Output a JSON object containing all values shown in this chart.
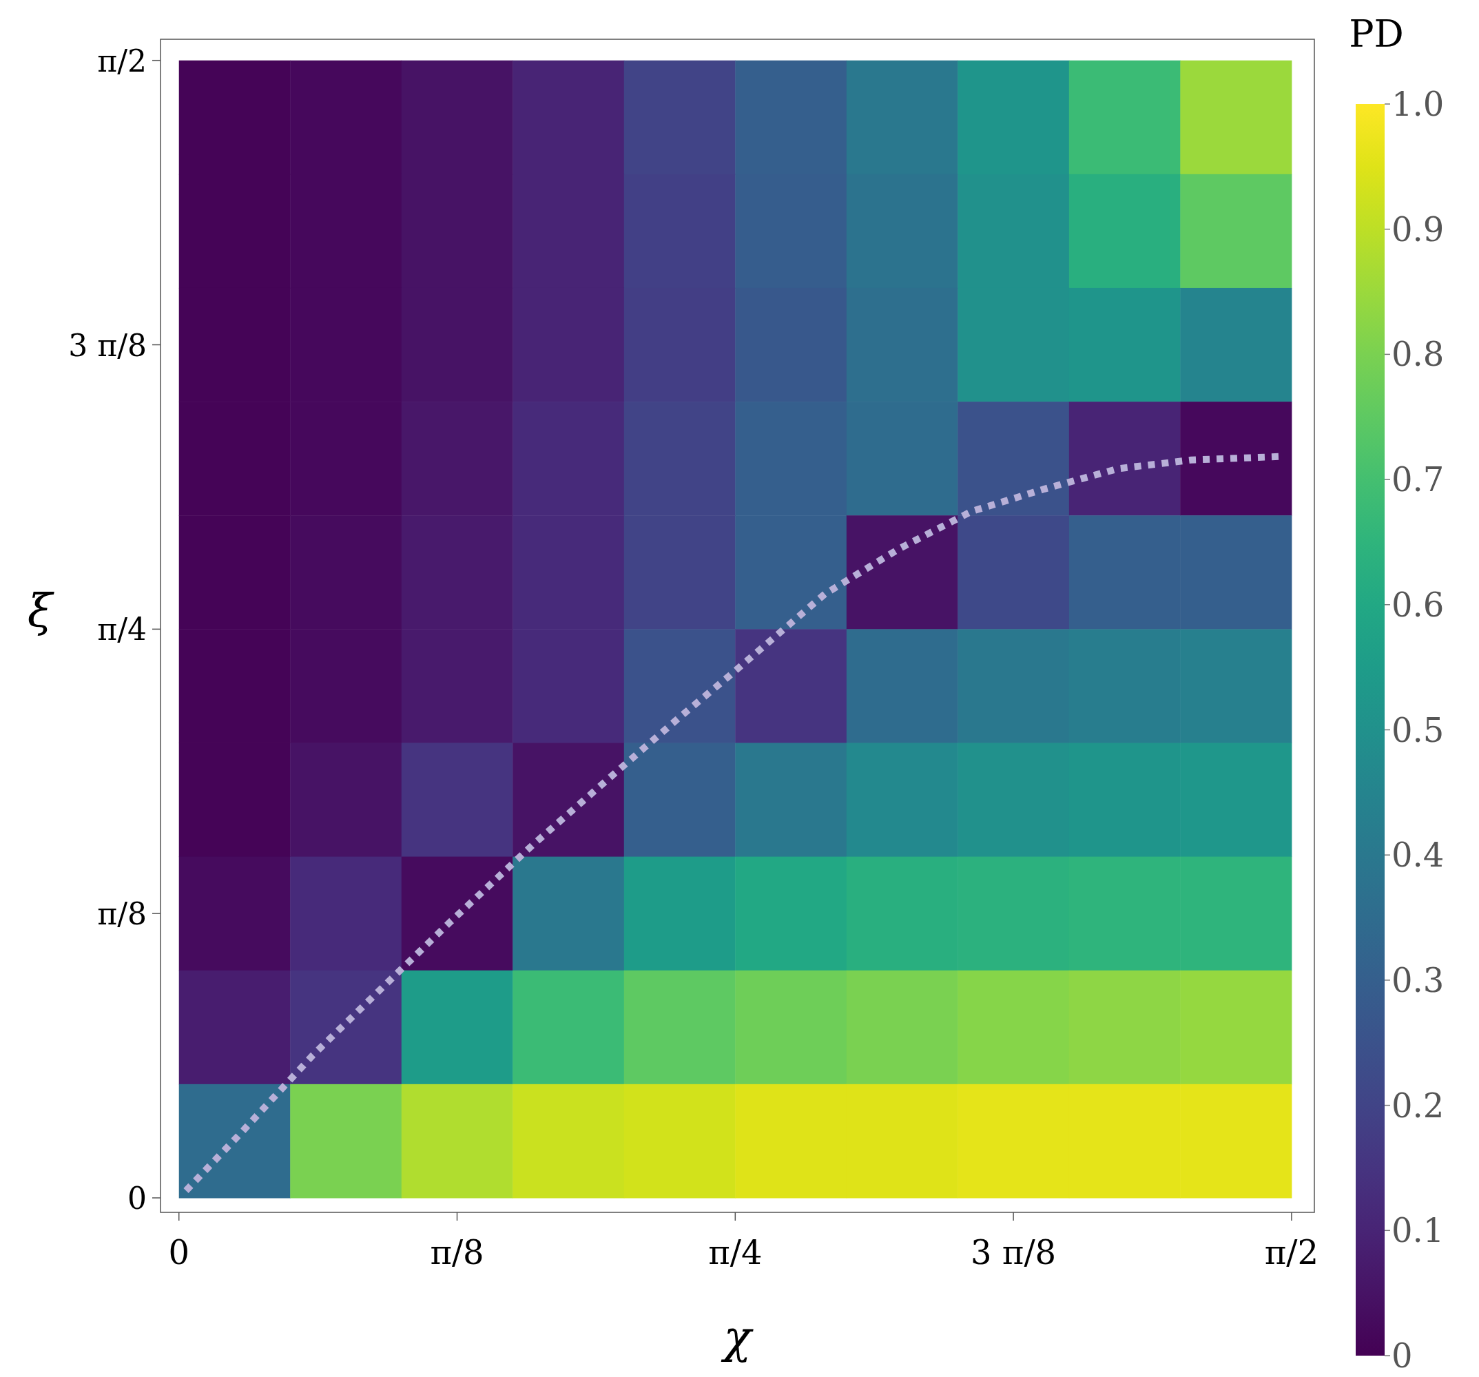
{
  "chart_data": {
    "type": "heatmap",
    "xlabel": "χ",
    "ylabel": "ξ",
    "clabel": "PD",
    "cells": [
      [
        0.01,
        0.02,
        0.05,
        0.1,
        0.2,
        0.3,
        0.4,
        0.52,
        0.68,
        0.85
      ],
      [
        0.01,
        0.02,
        0.05,
        0.1,
        0.19,
        0.29,
        0.38,
        0.5,
        0.63,
        0.75
      ],
      [
        0.01,
        0.02,
        0.05,
        0.1,
        0.18,
        0.27,
        0.36,
        0.5,
        0.52,
        0.45
      ],
      [
        0.01,
        0.02,
        0.06,
        0.12,
        0.2,
        0.3,
        0.35,
        0.25,
        0.1,
        0.02
      ],
      [
        0.01,
        0.03,
        0.07,
        0.12,
        0.2,
        0.3,
        0.05,
        0.22,
        0.3,
        0.3
      ],
      [
        0.01,
        0.03,
        0.07,
        0.12,
        0.25,
        0.15,
        0.35,
        0.4,
        0.42,
        0.43
      ],
      [
        0.01,
        0.05,
        0.15,
        0.05,
        0.3,
        0.4,
        0.47,
        0.5,
        0.52,
        0.53
      ],
      [
        0.03,
        0.12,
        0.03,
        0.4,
        0.55,
        0.6,
        0.63,
        0.64,
        0.65,
        0.65
      ],
      [
        0.08,
        0.15,
        0.55,
        0.68,
        0.75,
        0.78,
        0.8,
        0.82,
        0.83,
        0.84
      ],
      [
        0.35,
        0.8,
        0.88,
        0.92,
        0.93,
        0.95,
        0.95,
        0.96,
        0.96,
        0.96
      ]
    ],
    "clim": [
      0,
      1
    ],
    "cticks": [
      0,
      0.1,
      0.2,
      0.3,
      0.4,
      0.5,
      0.6,
      0.7,
      0.8,
      0.9,
      {
        "value": 1,
        "label": "1.0"
      }
    ],
    "xlim": [
      -0.026,
      1.603
    ],
    "ylim": [
      -0.02,
      1.6
    ],
    "xticks": [
      0,
      {
        "value": 0.3927,
        "label": "π/8"
      },
      {
        "value": 0.7854,
        "label": "π/4"
      },
      {
        "value": 1.1781,
        "label": "3 π/8"
      },
      {
        "value": 1.5708,
        "label": "π/2"
      }
    ],
    "yticks": [
      0,
      {
        "value": 0.3927,
        "label": "π/8"
      },
      {
        "value": 0.7854,
        "label": "π/4"
      },
      {
        "value": 1.1781,
        "label": "3 π/8"
      },
      {
        "value": 1.5708,
        "label": "π/2"
      }
    ],
    "series": [
      {
        "type": "line",
        "color": "#b8b0d8",
        "line_style": "dotted",
        "x": [
          0.01,
          0.086,
          0.189,
          0.292,
          0.383,
          0.499,
          0.602,
          0.706,
          0.776,
          0.912,
          1.016,
          1.119,
          1.222,
          1.326,
          1.429,
          1.561
        ],
        "values": [
          0.01,
          0.088,
          0.197,
          0.295,
          0.381,
          0.487,
          0.575,
          0.663,
          0.72,
          0.834,
          0.896,
          0.948,
          0.979,
          1.007,
          1.019,
          1.024
        ]
      }
    ]
  }
}
